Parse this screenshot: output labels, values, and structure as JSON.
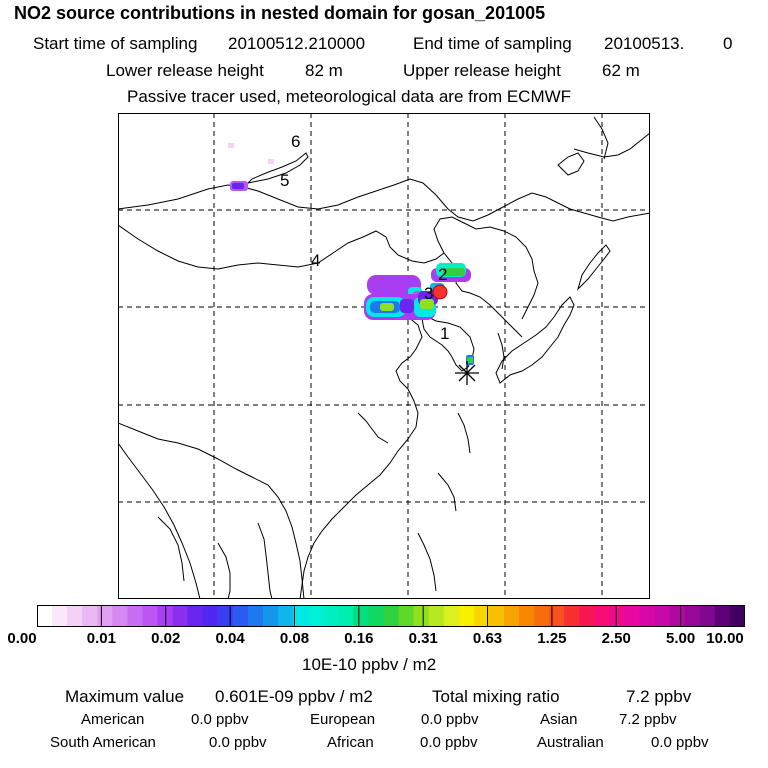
{
  "header": {
    "title": "NO2 source contributions in nested domain for gosan_201005",
    "start_label": "Start time of sampling",
    "start_value": "20100512.210000",
    "end_label": "End time of sampling",
    "end_value": "20100513.",
    "end_suffix": "0",
    "lower_label": "Lower release height",
    "lower_value": "82 m",
    "upper_label": "Upper release height",
    "upper_value": "62 m",
    "note": "Passive tracer used, meteorological data are from ECMWF"
  },
  "map": {
    "markers": [
      "1",
      "2",
      "3",
      "4",
      "5",
      "6"
    ],
    "station_icon": "asterisk-icon",
    "source_icon": "red-dot-icon"
  },
  "colorbar": {
    "labels": [
      "0.00",
      "0.01",
      "0.02",
      "0.04",
      "0.08",
      "0.16",
      "0.31",
      "0.63",
      "1.25",
      "2.50",
      "5.00",
      "10.00"
    ],
    "unit": "10E-10 ppbv / m2",
    "colors": [
      "#ffffff",
      "#fbe8fb",
      "#f5d0f7",
      "#eab8f3",
      "#e0a0ef",
      "#d488f0",
      "#c86ef2",
      "#bb55f4",
      "#a83df2",
      "#8a2ef0",
      "#6a26f0",
      "#4f28f2",
      "#3a3ef2",
      "#2a5af0",
      "#1e78ee",
      "#1496ec",
      "#0eb6ec",
      "#00e8e8",
      "#00f0d8",
      "#00f0c4",
      "#00eeb0",
      "#00e080",
      "#10d860",
      "#30d040",
      "#60d828",
      "#90e020",
      "#b8e820",
      "#dcf020",
      "#f8f000",
      "#f8d800",
      "#f8c000",
      "#f8a400",
      "#f88800",
      "#f86c10",
      "#f85020",
      "#f83030",
      "#f81850",
      "#f80c78",
      "#f00a90",
      "#e808a0",
      "#d808a8",
      "#c808a8",
      "#b008a0",
      "#980898",
      "#800890",
      "#600078",
      "#400060"
    ]
  },
  "footer": {
    "max_label": "Maximum value",
    "max_value": "0.601E-09 ppbv / m2",
    "total_label": "Total mixing ratio",
    "total_value": "7.2 ppbv",
    "regions": [
      {
        "name": "American",
        "value": "0.0 ppbv"
      },
      {
        "name": "European",
        "value": "0.0 ppbv"
      },
      {
        "name": "Asian",
        "value": "7.2 ppbv"
      },
      {
        "name": "South American",
        "value": "0.0 ppbv"
      },
      {
        "name": "African",
        "value": "0.0 ppbv"
      },
      {
        "name": "Australian",
        "value": "0.0 ppbv"
      }
    ]
  }
}
